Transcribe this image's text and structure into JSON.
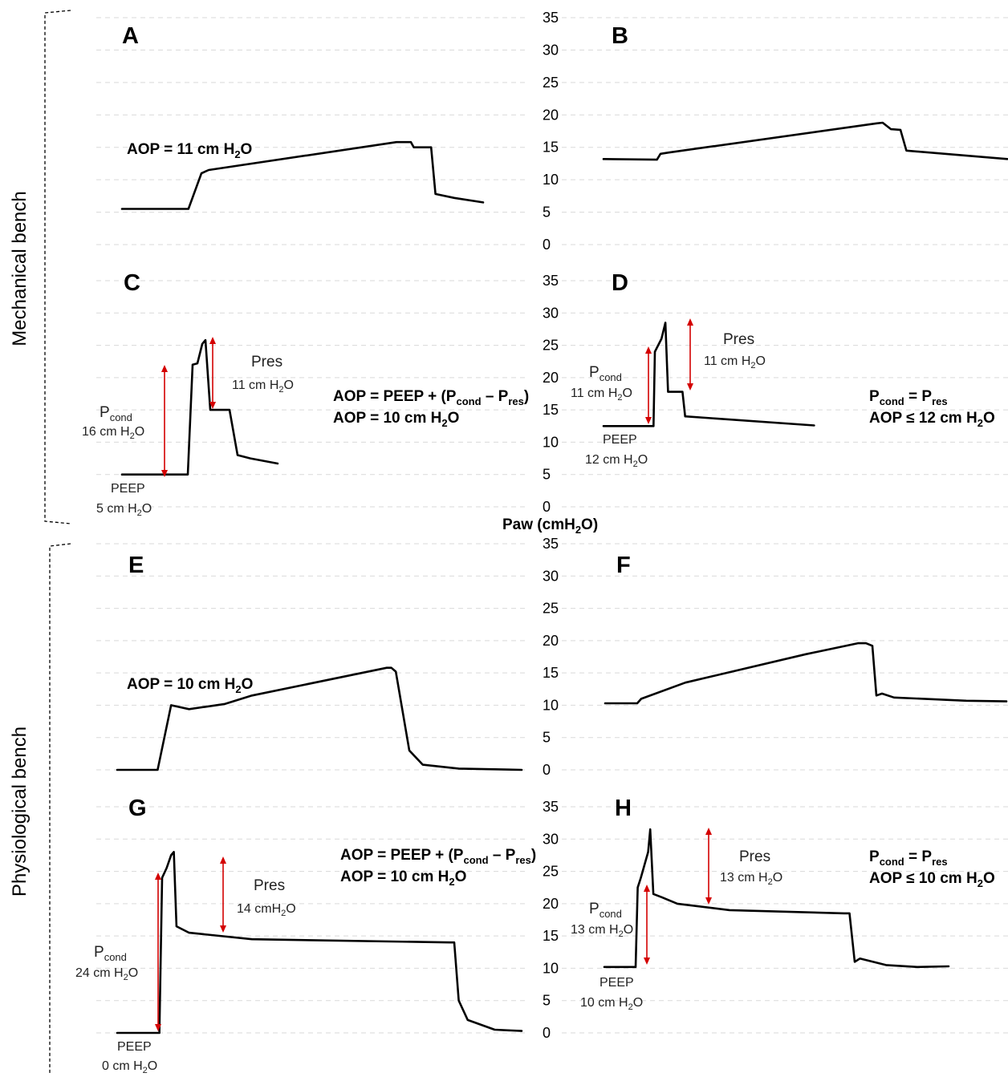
{
  "sections": [
    {
      "label": "Mechanical bench"
    },
    {
      "label": "Physiological bench"
    }
  ],
  "y_axis": {
    "label": "Paw (cmH",
    "label_sub": "2",
    "label_end": "O)",
    "ticks": [
      "0",
      "5",
      "10",
      "15",
      "20",
      "25",
      "30",
      "35"
    ]
  },
  "panels": {
    "A": {
      "letter": "A",
      "aop_prefix": "AOP = 11 cm H",
      "aop_sub": "2",
      "aop_suffix": "O"
    },
    "B": {
      "letter": "B"
    },
    "C": {
      "letter": "C",
      "pres": "Pres",
      "pres_val_pre": "11 cm H",
      "pres_val_sub": "2",
      "pres_val_post": "O",
      "pcond": "P",
      "pcond_sub": "cond",
      "pcond_val_pre": "16 cm H",
      "pcond_val_sub": "2",
      "pcond_val_post": "O",
      "peep": "PEEP",
      "peep_val_pre": "5 cm H",
      "peep_val_sub": "2",
      "peep_val_post": "O",
      "formula_pre": "AOP = PEEP + (P",
      "formula_sub1": "cond",
      "formula_mid": " – P",
      "formula_sub2": "res",
      "formula_post": ")",
      "result_pre": "AOP = 10 cm H",
      "result_sub": "2",
      "result_post": "O"
    },
    "D": {
      "letter": "D",
      "pres": "Pres",
      "pres_val_pre": "11 cm H",
      "pres_val_sub": "2",
      "pres_val_post": "O",
      "pcond": "P",
      "pcond_sub": "cond",
      "pcond_val_pre": "11 cm H",
      "pcond_val_sub": "2",
      "pcond_val_post": "O",
      "peep": "PEEP",
      "peep_val_pre": "12 cm H",
      "peep_val_sub": "2",
      "peep_val_post": "O",
      "eq_p1": "P",
      "eq_sub1": "cond",
      "eq_mid": " = P",
      "eq_sub2": "res",
      "result_pre": "AOP ≤ 12 cm H",
      "result_sub": "2",
      "result_post": "O"
    },
    "E": {
      "letter": "E",
      "aop_prefix": "AOP = 10 cm H",
      "aop_sub": "2",
      "aop_suffix": "O"
    },
    "F": {
      "letter": "F"
    },
    "G": {
      "letter": "G",
      "pres": "Pres",
      "pres_val": "14 cmH",
      "pres_val_sub": "2",
      "pres_val_post": "O",
      "pcond": "P",
      "pcond_sub": "cond",
      "pcond_val_pre": "24 cm H",
      "pcond_val_sub": "2",
      "pcond_val_post": "O",
      "peep": "PEEP",
      "peep_val_pre": "0 cm H",
      "peep_val_sub": "2",
      "peep_val_post": "O",
      "formula_pre": "AOP = PEEP + (P",
      "formula_sub1": "cond",
      "formula_mid": " – P",
      "formula_sub2": "res",
      "formula_post": ")",
      "result_pre": "AOP = 10 cm H",
      "result_sub": "2",
      "result_post": "O"
    },
    "H": {
      "letter": "H",
      "pres": "Pres",
      "pres_val_pre": "13 cm H",
      "pres_val_sub": "2",
      "pres_val_post": "O",
      "pcond": "P",
      "pcond_sub": "cond",
      "pcond_val_pre": "13 cm H",
      "pcond_val_sub": "2",
      "pcond_val_post": "O",
      "peep": "PEEP",
      "peep_val_pre": "10 cm H",
      "peep_val_sub": "2",
      "peep_val_post": "O",
      "eq_p1": "P",
      "eq_sub1": "cond",
      "eq_mid": " = P",
      "eq_sub2": "res",
      "result_pre": "AOP ≤ 10 cm H",
      "result_sub": "2",
      "result_post": "O"
    }
  },
  "chart_data": {
    "type": "line",
    "ylabel": "Paw (cmH2O)",
    "ylim": [
      0,
      35
    ],
    "grid": true,
    "panels": [
      {
        "id": "A",
        "series": [
          {
            "values": [
              [
                0,
                5.5
              ],
              [
                0.46,
                5.5
              ],
              [
                0.55,
                11
              ],
              [
                0.6,
                11.5
              ],
              [
                1.9,
                15.8
              ],
              [
                2.0,
                15.8
              ],
              [
                2.02,
                15
              ],
              [
                2.14,
                15
              ],
              [
                2.17,
                7.8
              ],
              [
                2.3,
                7.2
              ],
              [
                2.5,
                6.5
              ]
            ]
          }
        ]
      },
      {
        "id": "B",
        "series": [
          {
            "values": [
              [
                0,
                13.2
              ],
              [
                0.45,
                13.1
              ],
              [
                0.48,
                14
              ],
              [
                0.55,
                14.2
              ],
              [
                2.3,
                18.7
              ],
              [
                2.35,
                18.8
              ],
              [
                2.42,
                17.8
              ],
              [
                2.5,
                17.7
              ],
              [
                2.55,
                14.5
              ],
              [
                3.4,
                13.2
              ]
            ]
          }
        ]
      },
      {
        "id": "C",
        "series": [
          {
            "values": [
              [
                0,
                5
              ],
              [
                0.41,
                5
              ],
              [
                0.44,
                22
              ],
              [
                0.47,
                22.2
              ],
              [
                0.5,
                25.2
              ],
              [
                0.52,
                25.8
              ],
              [
                0.55,
                15
              ],
              [
                0.67,
                15
              ],
              [
                0.72,
                8
              ],
              [
                0.8,
                7.5
              ],
              [
                0.97,
                6.7
              ]
            ]
          }
        ]
      },
      {
        "id": "D",
        "series": [
          {
            "values": [
              [
                0,
                12.5
              ],
              [
                0.38,
                12.5
              ],
              [
                0.39,
                24
              ],
              [
                0.44,
                26
              ],
              [
                0.47,
                28.5
              ],
              [
                0.49,
                17.8
              ],
              [
                0.6,
                17.8
              ],
              [
                0.62,
                14
              ],
              [
                1.6,
                12.6
              ]
            ]
          }
        ]
      },
      {
        "id": "E",
        "series": [
          {
            "values": [
              [
                0,
                0
              ],
              [
                0.45,
                0
              ],
              [
                0.6,
                10
              ],
              [
                0.8,
                9.4
              ],
              [
                1.2,
                10.2
              ],
              [
                1.5,
                11.5
              ],
              [
                3.0,
                15.8
              ],
              [
                3.05,
                15.8
              ],
              [
                3.1,
                15.2
              ],
              [
                3.25,
                3
              ],
              [
                3.4,
                0.8
              ],
              [
                3.8,
                0.2
              ],
              [
                4.5,
                0
              ]
            ]
          }
        ]
      },
      {
        "id": "F",
        "series": [
          {
            "values": [
              [
                0,
                10.3
              ],
              [
                0.4,
                10.3
              ],
              [
                0.45,
                11
              ],
              [
                1.0,
                13.5
              ],
              [
                2.5,
                17.9
              ],
              [
                3.15,
                19.6
              ],
              [
                3.25,
                19.6
              ],
              [
                3.33,
                19.2
              ],
              [
                3.38,
                11.5
              ],
              [
                3.45,
                11.8
              ],
              [
                3.6,
                11.2
              ],
              [
                4.5,
                10.7
              ],
              [
                5.0,
                10.6
              ]
            ]
          }
        ]
      },
      {
        "id": "G",
        "series": [
          {
            "values": [
              [
                0,
                0
              ],
              [
                0.47,
                0
              ],
              [
                0.5,
                24
              ],
              [
                0.55,
                25.5
              ],
              [
                0.6,
                27.5
              ],
              [
                0.63,
                28
              ],
              [
                0.66,
                16.5
              ],
              [
                0.8,
                15.5
              ],
              [
                1.5,
                14.5
              ],
              [
                3.7,
                14
              ],
              [
                3.75,
                14
              ],
              [
                3.8,
                5
              ],
              [
                3.9,
                2
              ],
              [
                4.2,
                0.5
              ],
              [
                4.5,
                0.3
              ]
            ]
          }
        ]
      },
      {
        "id": "H",
        "series": [
          {
            "values": [
              [
                0,
                10.2
              ],
              [
                0.3,
                10.2
              ],
              [
                0.32,
                22.5
              ],
              [
                0.35,
                24
              ],
              [
                0.42,
                28
              ],
              [
                0.44,
                31.5
              ],
              [
                0.47,
                21.5
              ],
              [
                0.55,
                21
              ],
              [
                0.7,
                20
              ],
              [
                1.2,
                19
              ],
              [
                2.3,
                18.5
              ],
              [
                2.35,
                18.5
              ],
              [
                2.4,
                11
              ],
              [
                2.45,
                11.5
              ],
              [
                2.7,
                10.5
              ],
              [
                3.0,
                10.2
              ],
              [
                3.3,
                10.3
              ]
            ]
          }
        ]
      }
    ]
  }
}
